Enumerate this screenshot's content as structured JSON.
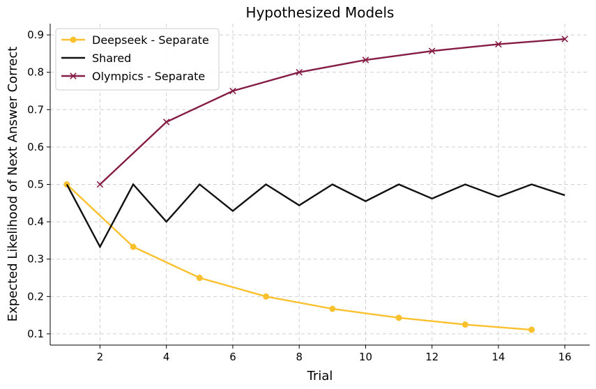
{
  "chart_data": {
    "type": "line",
    "title": "Hypothesized Models",
    "xlabel": "Trial",
    "ylabel": "Expected Likelihood of Next Answer Correct",
    "xlim": [
      0.5,
      16.75
    ],
    "ylim": [
      0.07,
      0.93
    ],
    "xticks": [
      2,
      4,
      6,
      8,
      10,
      12,
      14,
      16
    ],
    "yticks": [
      0.1,
      0.2,
      0.3,
      0.4,
      0.5,
      0.6,
      0.7,
      0.8,
      0.9
    ],
    "grid": true,
    "legend_position": "top-left",
    "series": [
      {
        "name": "Deepseek - Separate",
        "color": "#fbc02d",
        "marker": "circle",
        "x": [
          1,
          3,
          5,
          7,
          9,
          11,
          13,
          15
        ],
        "y": [
          0.5,
          0.333,
          0.25,
          0.2,
          0.167,
          0.143,
          0.125,
          0.111
        ]
      },
      {
        "name": "Shared",
        "color": "#111111",
        "marker": "none",
        "x": [
          1,
          2,
          3,
          4,
          5,
          6,
          7,
          8,
          9,
          10,
          11,
          12,
          13,
          14,
          15,
          16
        ],
        "y": [
          0.5,
          0.333,
          0.5,
          0.4,
          0.5,
          0.429,
          0.5,
          0.444,
          0.5,
          0.455,
          0.5,
          0.462,
          0.5,
          0.467,
          0.5,
          0.471
        ]
      },
      {
        "name": "Olympics - Separate",
        "color": "#851c44",
        "marker": "x",
        "x": [
          2,
          4,
          6,
          8,
          10,
          12,
          14,
          16
        ],
        "y": [
          0.5,
          0.667,
          0.75,
          0.8,
          0.833,
          0.857,
          0.875,
          0.889
        ]
      }
    ]
  }
}
